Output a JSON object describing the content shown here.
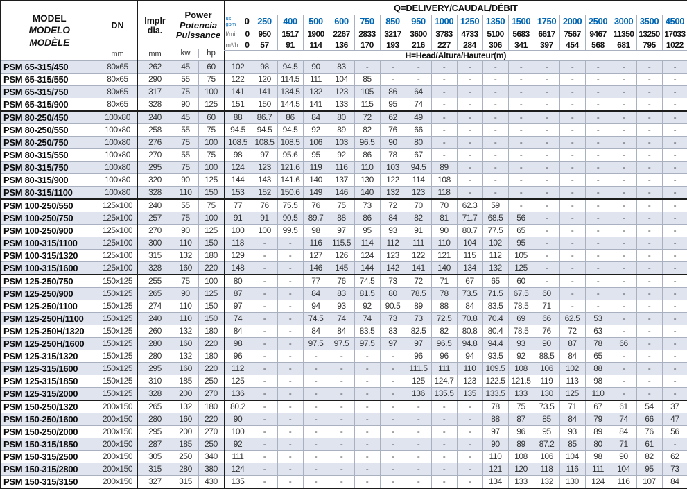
{
  "colors": {
    "accent_blue": "#0066b3",
    "row_shade": "#dfe4ef",
    "border_dark": "#1c1c1c",
    "border_light": "#a9b0bf",
    "value_text": "#333333",
    "unit_gray": "#6f6f6f"
  },
  "header": {
    "model_lines": [
      "MODEL",
      "MODELO",
      "MODÈLE"
    ],
    "dn": {
      "label": "DN",
      "unit": "mm"
    },
    "impeller": {
      "line1": "Implr",
      "line2": "dia.",
      "unit": "mm"
    },
    "power": {
      "line1": "Power",
      "line2": "Potencia",
      "line3": "Puissance",
      "unit_kw": "kw",
      "unit_hp": "hp"
    },
    "q_title": {
      "part1": "Q=DELIVERY/",
      "part2": "CAUDAL/DÉBIT"
    },
    "h_title": {
      "part1": "H=Head/",
      "part2": "Altura/Hauteur",
      "part3": "(m)"
    },
    "flow_rows": [
      {
        "label_lines": [
          "us",
          "gpm"
        ],
        "values": [
          "0",
          "250",
          "400",
          "500",
          "600",
          "750",
          "850",
          "950",
          "1000",
          "1250",
          "1350",
          "1500",
          "1750",
          "2000",
          "2500",
          "3000",
          "3500",
          "4500"
        ]
      },
      {
        "label": "l/min",
        "values": [
          "0",
          "950",
          "1517",
          "1900",
          "2267",
          "2833",
          "3217",
          "3600",
          "3783",
          "4733",
          "5100",
          "5683",
          "6617",
          "7567",
          "9467",
          "11350",
          "13250",
          "17033"
        ]
      },
      {
        "label": "m³/h",
        "values": [
          "0",
          "57",
          "91",
          "114",
          "136",
          "170",
          "193",
          "216",
          "227",
          "284",
          "306",
          "341",
          "397",
          "454",
          "568",
          "681",
          "795",
          "1022"
        ]
      }
    ]
  },
  "rows": [
    {
      "model": "PSM 65-315/450",
      "dn": "80x65",
      "implr": "262",
      "kw": "45",
      "hp": "60",
      "gsep": false,
      "heads": [
        "102",
        "98",
        "94.5",
        "90",
        "83",
        "-",
        "-",
        "-",
        "-",
        "-",
        "-",
        "-",
        "-",
        "-",
        "-",
        "-",
        "-",
        "-"
      ]
    },
    {
      "model": "PSM 65-315/550",
      "dn": "80x65",
      "implr": "290",
      "kw": "55",
      "hp": "75",
      "gsep": false,
      "heads": [
        "122",
        "120",
        "114.5",
        "111",
        "104",
        "85",
        "-",
        "-",
        "-",
        "-",
        "-",
        "-",
        "-",
        "-",
        "-",
        "-",
        "-",
        "-"
      ]
    },
    {
      "model": "PSM 65-315/750",
      "dn": "80x65",
      "implr": "317",
      "kw": "75",
      "hp": "100",
      "gsep": false,
      "heads": [
        "141",
        "141",
        "134.5",
        "132",
        "123",
        "105",
        "86",
        "64",
        "-",
        "-",
        "-",
        "-",
        "-",
        "-",
        "-",
        "-",
        "-",
        "-"
      ]
    },
    {
      "model": "PSM 65-315/900",
      "dn": "80x65",
      "implr": "328",
      "kw": "90",
      "hp": "125",
      "gsep": false,
      "heads": [
        "151",
        "150",
        "144.5",
        "141",
        "133",
        "115",
        "95",
        "74",
        "-",
        "-",
        "-",
        "-",
        "-",
        "-",
        "-",
        "-",
        "-",
        "-"
      ]
    },
    {
      "model": "PSM 80-250/450",
      "dn": "100x80",
      "implr": "240",
      "kw": "45",
      "hp": "60",
      "gsep": true,
      "heads": [
        "88",
        "86.7",
        "86",
        "84",
        "80",
        "72",
        "62",
        "49",
        "-",
        "-",
        "-",
        "-",
        "-",
        "-",
        "-",
        "-",
        "-",
        "-"
      ]
    },
    {
      "model": "PSM 80-250/550",
      "dn": "100x80",
      "implr": "258",
      "kw": "55",
      "hp": "75",
      "gsep": false,
      "heads": [
        "94.5",
        "94.5",
        "94.5",
        "92",
        "89",
        "82",
        "76",
        "66",
        "-",
        "-",
        "-",
        "-",
        "-",
        "-",
        "-",
        "-",
        "-",
        "-"
      ]
    },
    {
      "model": "PSM 80-250/750",
      "dn": "100x80",
      "implr": "276",
      "kw": "75",
      "hp": "100",
      "gsep": false,
      "heads": [
        "108.5",
        "108.5",
        "108.5",
        "106",
        "103",
        "96.5",
        "90",
        "80",
        "-",
        "-",
        "-",
        "-",
        "-",
        "-",
        "-",
        "-",
        "-",
        "-"
      ]
    },
    {
      "model": "PSM 80-315/550",
      "dn": "100x80",
      "implr": "270",
      "kw": "55",
      "hp": "75",
      "gsep": false,
      "heads": [
        "98",
        "97",
        "95.6",
        "95",
        "92",
        "86",
        "78",
        "67",
        "-",
        "-",
        "-",
        "-",
        "-",
        "-",
        "-",
        "-",
        "-",
        "-"
      ]
    },
    {
      "model": "PSM 80-315/750",
      "dn": "100x80",
      "implr": "295",
      "kw": "75",
      "hp": "100",
      "gsep": false,
      "heads": [
        "124",
        "123",
        "121.6",
        "119",
        "116",
        "110",
        "103",
        "94.5",
        "89",
        "-",
        "-",
        "-",
        "-",
        "-",
        "-",
        "-",
        "-",
        "-"
      ]
    },
    {
      "model": "PSM 80-315/900",
      "dn": "100x80",
      "implr": "320",
      "kw": "90",
      "hp": "125",
      "gsep": false,
      "heads": [
        "144",
        "143",
        "141.6",
        "140",
        "137",
        "130",
        "122",
        "114",
        "108",
        "-",
        "-",
        "-",
        "-",
        "-",
        "-",
        "-",
        "-",
        "-"
      ]
    },
    {
      "model": "PSM 80-315/1100",
      "dn": "100x80",
      "implr": "328",
      "kw": "110",
      "hp": "150",
      "gsep": false,
      "heads": [
        "153",
        "152",
        "150.6",
        "149",
        "146",
        "140",
        "132",
        "123",
        "118",
        "-",
        "-",
        "-",
        "-",
        "-",
        "-",
        "-",
        "-",
        "-"
      ]
    },
    {
      "model": "PSM 100-250/550",
      "dn": "125x100",
      "implr": "240",
      "kw": "55",
      "hp": "75",
      "gsep": true,
      "heads": [
        "77",
        "76",
        "75.5",
        "76",
        "75",
        "73",
        "72",
        "70",
        "70",
        "62.3",
        "59",
        "-",
        "-",
        "-",
        "-",
        "-",
        "-",
        "-"
      ]
    },
    {
      "model": "PSM 100-250/750",
      "dn": "125x100",
      "implr": "257",
      "kw": "75",
      "hp": "100",
      "gsep": false,
      "heads": [
        "91",
        "91",
        "90.5",
        "89.7",
        "88",
        "86",
        "84",
        "82",
        "81",
        "71.7",
        "68.5",
        "56",
        "-",
        "-",
        "-",
        "-",
        "-",
        "-"
      ]
    },
    {
      "model": "PSM 100-250/900",
      "dn": "125x100",
      "implr": "270",
      "kw": "90",
      "hp": "125",
      "gsep": false,
      "heads": [
        "100",
        "100",
        "99.5",
        "98",
        "97",
        "95",
        "93",
        "91",
        "90",
        "80.7",
        "77.5",
        "65",
        "-",
        "-",
        "-",
        "-",
        "-",
        "-"
      ]
    },
    {
      "model": "PSM 100-315/1100",
      "dn": "125x100",
      "implr": "300",
      "kw": "110",
      "hp": "150",
      "gsep": false,
      "heads": [
        "118",
        "-",
        "-",
        "116",
        "115.5",
        "114",
        "112",
        "111",
        "110",
        "104",
        "102",
        "95",
        "-",
        "-",
        "-",
        "-",
        "-",
        "-"
      ]
    },
    {
      "model": "PSM 100-315/1320",
      "dn": "125x100",
      "implr": "315",
      "kw": "132",
      "hp": "180",
      "gsep": false,
      "heads": [
        "129",
        "-",
        "-",
        "127",
        "126",
        "124",
        "123",
        "122",
        "121",
        "115",
        "112",
        "105",
        "-",
        "-",
        "-",
        "-",
        "-",
        "-"
      ]
    },
    {
      "model": "PSM 100-315/1600",
      "dn": "125x100",
      "implr": "328",
      "kw": "160",
      "hp": "220",
      "gsep": false,
      "heads": [
        "148",
        "-",
        "-",
        "146",
        "145",
        "144",
        "142",
        "141",
        "140",
        "134",
        "132",
        "125",
        "-",
        "-",
        "-",
        "-",
        "-",
        "-"
      ]
    },
    {
      "model": "PSM 125-250/750",
      "dn": "150x125",
      "implr": "255",
      "kw": "75",
      "hp": "100",
      "gsep": true,
      "heads": [
        "80",
        "-",
        "-",
        "77",
        "76",
        "74.5",
        "73",
        "72",
        "71",
        "67",
        "65",
        "60",
        "-",
        "-",
        "-",
        "-",
        "-",
        "-"
      ]
    },
    {
      "model": "PSM 125-250/900",
      "dn": "150x125",
      "implr": "265",
      "kw": "90",
      "hp": "125",
      "gsep": false,
      "heads": [
        "87",
        "-",
        "-",
        "84",
        "83",
        "81.5",
        "80",
        "78.5",
        "78",
        "73.5",
        "71.5",
        "67.5",
        "60",
        "-",
        "-",
        "-",
        "-",
        "-"
      ]
    },
    {
      "model": "PSM 125-250/1100",
      "dn": "150x125",
      "implr": "274",
      "kw": "110",
      "hp": "150",
      "gsep": false,
      "heads": [
        "97",
        "-",
        "-",
        "94",
        "93",
        "92",
        "90.5",
        "89",
        "88",
        "84",
        "83.5",
        "78.5",
        "71",
        "-",
        "-",
        "-",
        "-",
        "-"
      ]
    },
    {
      "model": "PSM 125-250H/1100",
      "dn": "150x125",
      "implr": "240",
      "kw": "110",
      "hp": "150",
      "gsep": false,
      "heads": [
        "74",
        "-",
        "-",
        "74.5",
        "74",
        "74",
        "73",
        "73",
        "72.5",
        "70.8",
        "70.4",
        "69",
        "66",
        "62.5",
        "53",
        "-",
        "-",
        "-"
      ]
    },
    {
      "model": "PSM 125-250H/1320",
      "dn": "150x125",
      "implr": "260",
      "kw": "132",
      "hp": "180",
      "gsep": false,
      "heads": [
        "84",
        "-",
        "-",
        "84",
        "84",
        "83.5",
        "83",
        "82.5",
        "82",
        "80.8",
        "80.4",
        "78.5",
        "76",
        "72",
        "63",
        "-",
        "-",
        "-"
      ]
    },
    {
      "model": "PSM 125-250H/1600",
      "dn": "150x125",
      "implr": "280",
      "kw": "160",
      "hp": "220",
      "gsep": false,
      "heads": [
        "98",
        "-",
        "-",
        "97.5",
        "97.5",
        "97.5",
        "97",
        "97",
        "96.5",
        "94.8",
        "94.4",
        "93",
        "90",
        "87",
        "78",
        "66",
        "-",
        "-"
      ]
    },
    {
      "model": "PSM 125-315/1320",
      "dn": "150x125",
      "implr": "280",
      "kw": "132",
      "hp": "180",
      "gsep": false,
      "heads": [
        "96",
        "-",
        "-",
        "-",
        "-",
        "-",
        "-",
        "96",
        "96",
        "94",
        "93.5",
        "92",
        "88.5",
        "84",
        "65",
        "-",
        "-",
        "-"
      ]
    },
    {
      "model": "PSM 125-315/1600",
      "dn": "150x125",
      "implr": "295",
      "kw": "160",
      "hp": "220",
      "gsep": false,
      "heads": [
        "112",
        "-",
        "-",
        "-",
        "-",
        "-",
        "-",
        "111.5",
        "111",
        "110",
        "109.5",
        "108",
        "106",
        "102",
        "88",
        "-",
        "-",
        "-"
      ]
    },
    {
      "model": "PSM 125-315/1850",
      "dn": "150x125",
      "implr": "310",
      "kw": "185",
      "hp": "250",
      "gsep": false,
      "heads": [
        "125",
        "-",
        "-",
        "-",
        "-",
        "-",
        "-",
        "125",
        "124.7",
        "123",
        "122.5",
        "121.5",
        "119",
        "113",
        "98",
        "-",
        "-",
        "-"
      ]
    },
    {
      "model": "PSM 125-315/2000",
      "dn": "150x125",
      "implr": "328",
      "kw": "200",
      "hp": "270",
      "gsep": false,
      "heads": [
        "136",
        "-",
        "-",
        "-",
        "-",
        "-",
        "-",
        "136",
        "135.5",
        "135",
        "133.5",
        "133",
        "130",
        "125",
        "110",
        "-",
        "-",
        "-"
      ]
    },
    {
      "model": "PSM 150-250/1320",
      "dn": "200x150",
      "implr": "265",
      "kw": "132",
      "hp": "180",
      "gsep": true,
      "heads": [
        "80.2",
        "-",
        "-",
        "-",
        "-",
        "-",
        "-",
        "-",
        "-",
        "-",
        "78",
        "75",
        "73.5",
        "71",
        "67",
        "61",
        "54",
        "37"
      ]
    },
    {
      "model": "PSM 150-250/1600",
      "dn": "200x150",
      "implr": "280",
      "kw": "160",
      "hp": "220",
      "gsep": false,
      "heads": [
        "90",
        "-",
        "-",
        "-",
        "-",
        "-",
        "-",
        "-",
        "-",
        "-",
        "88",
        "87",
        "85",
        "84",
        "79",
        "74",
        "66",
        "47"
      ]
    },
    {
      "model": "PSM 150-250/2000",
      "dn": "200x150",
      "implr": "295",
      "kw": "200",
      "hp": "270",
      "gsep": false,
      "heads": [
        "100",
        "-",
        "-",
        "-",
        "-",
        "-",
        "-",
        "-",
        "-",
        "-",
        "97",
        "96",
        "95",
        "93",
        "89",
        "84",
        "76",
        "56"
      ]
    },
    {
      "model": "PSM 150-315/1850",
      "dn": "200x150",
      "implr": "287",
      "kw": "185",
      "hp": "250",
      "gsep": false,
      "heads": [
        "92",
        "-",
        "-",
        "-",
        "-",
        "-",
        "-",
        "-",
        "-",
        "-",
        "90",
        "89",
        "87.2",
        "85",
        "80",
        "71",
        "61",
        "-"
      ]
    },
    {
      "model": "PSM 150-315/2500",
      "dn": "200x150",
      "implr": "305",
      "kw": "250",
      "hp": "340",
      "gsep": false,
      "heads": [
        "111",
        "-",
        "-",
        "-",
        "-",
        "-",
        "-",
        "-",
        "-",
        "-",
        "110",
        "108",
        "106",
        "104",
        "98",
        "90",
        "82",
        "62"
      ]
    },
    {
      "model": "PSM 150-315/2800",
      "dn": "200x150",
      "implr": "315",
      "kw": "280",
      "hp": "380",
      "gsep": false,
      "heads": [
        "124",
        "-",
        "-",
        "-",
        "-",
        "-",
        "-",
        "-",
        "-",
        "-",
        "121",
        "120",
        "118",
        "116",
        "111",
        "104",
        "95",
        "73"
      ]
    },
    {
      "model": "PSM 150-315/3150",
      "dn": "200x150",
      "implr": "327",
      "kw": "315",
      "hp": "430",
      "gsep": false,
      "heads": [
        "135",
        "-",
        "-",
        "-",
        "-",
        "-",
        "-",
        "-",
        "-",
        "-",
        "134",
        "133",
        "132",
        "130",
        "124",
        "116",
        "107",
        "84"
      ]
    }
  ]
}
